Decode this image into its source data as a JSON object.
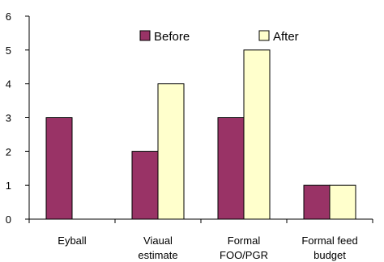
{
  "chart_data": {
    "type": "bar",
    "title": "",
    "xlabel": "",
    "ylabel": "",
    "categories": [
      [
        "Eyball"
      ],
      [
        "Viaual",
        "estimate"
      ],
      [
        "Formal",
        "FOO/PGR"
      ],
      [
        "Formal feed",
        "budget"
      ]
    ],
    "series": [
      {
        "name": "Before",
        "color": "#993366",
        "values": [
          3,
          2,
          3,
          1
        ]
      },
      {
        "name": "After",
        "color": "#ffffcc",
        "values": [
          0,
          4,
          5,
          1
        ]
      }
    ],
    "ylim": [
      0,
      6
    ],
    "yticks": [
      "0",
      "1",
      "2",
      "3",
      "4",
      "5",
      "6"
    ],
    "grid": false,
    "legend": "top-center"
  }
}
